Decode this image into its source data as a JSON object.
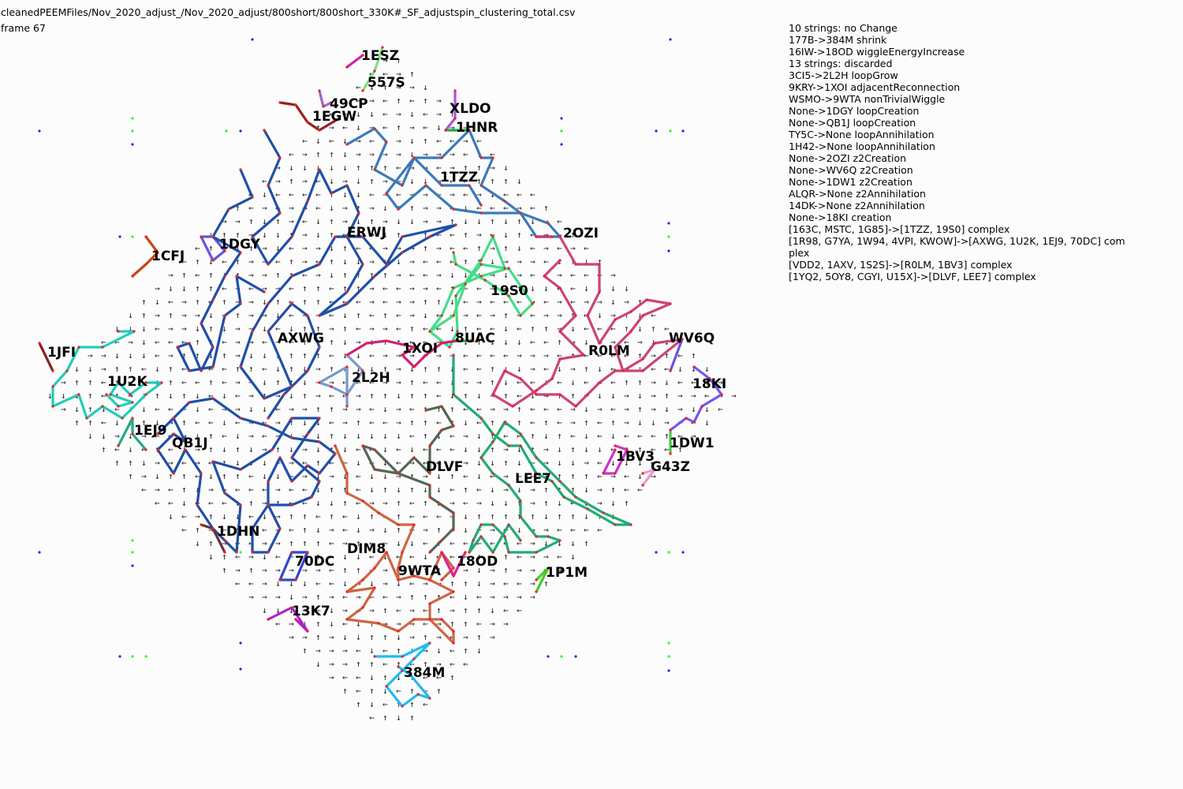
{
  "header": {
    "file_path": "cleanedPEEMFiles/Nov_2020_adjust_/Nov_2020_adjust/800short/800short_330K#_SF_adjustspin_clustering_total.csv",
    "frame_label": "frame 67"
  },
  "log": [
    "10 strings: no Change",
    "177B->384M shrink",
    "16IW->18OD wiggleEnergyIncrease",
    "13 strings: discarded",
    "3CI5->2L2H loopGrow",
    "9KRY->1XOI adjacentReconnection",
    "WSMO->9WTA nonTrivialWiggle",
    "None->1DGY loopCreation",
    "None->QB1J loopCreation",
    "TY5C->None loopAnnihilation",
    "1H42->None loopAnnihilation",
    "None->2OZI z2Creation",
    "None->WV6Q z2Creation",
    "None->1DW1 z2Creation",
    "ALQR->None z2Annihilation",
    "14DK->None z2Annihilation",
    "None->18KI creation",
    "[163C, MSTC, 1G85]->[1TZZ, 19S0] complex",
    "[1R98, G7YA, 1W94, 4VPI, KWOW]->[AXWG, 1U2K, 1EJ9, 70DC] com",
    "plex",
    "[VDD2, 1AXV, 1S2S]->[R0LM, 1BV3] complex",
    "[1YQ2, 5OY8, CGYI, U15X]->[DLVF, LEE7] complex"
  ],
  "strings": [
    {
      "id": "1ESZ",
      "color": "#cc22aa"
    },
    {
      "id": "557S",
      "color": "#7ee07e"
    },
    {
      "id": "49CP",
      "color": "#9966cc"
    },
    {
      "id": "1EGW",
      "color": "#992222"
    },
    {
      "id": "XLDO",
      "color": "#aa55dd"
    },
    {
      "id": "1HNR",
      "color": "#22aa44"
    },
    {
      "id": "1TZZ",
      "color": "#3a7ab8"
    },
    {
      "id": "1CFJ",
      "color": "#cc4411"
    },
    {
      "id": "1DGY",
      "color": "#6655dd"
    },
    {
      "id": "ERWJ",
      "color": "#1f4fa8"
    },
    {
      "id": "2OZI",
      "color": "#cc3377"
    },
    {
      "id": "19S0",
      "color": "#44dd88"
    },
    {
      "id": "1JFI",
      "color": "#882222"
    },
    {
      "id": "AXWG",
      "color": "#1f4fa8"
    },
    {
      "id": "1XOI",
      "color": "#cc2277"
    },
    {
      "id": "8UAC",
      "color": "#449944"
    },
    {
      "id": "R0LM",
      "color": "#cc4477"
    },
    {
      "id": "WV6Q",
      "color": "#6655dd"
    },
    {
      "id": "2L2H",
      "color": "#7799cc"
    },
    {
      "id": "1U2K",
      "color": "#22ccbb"
    },
    {
      "id": "18KI",
      "color": "#7755ee"
    },
    {
      "id": "1EJ9",
      "color": "#22aa88"
    },
    {
      "id": "QB1J",
      "color": "#1f4fa8"
    },
    {
      "id": "1DW1",
      "color": "#44cc44"
    },
    {
      "id": "1BV3",
      "color": "#cc33cc"
    },
    {
      "id": "G43Z",
      "color": "#ee99cc"
    },
    {
      "id": "DLVF",
      "color": "#556655"
    },
    {
      "id": "LEE7",
      "color": "#22aa77"
    },
    {
      "id": "1DHN",
      "color": "#663333"
    },
    {
      "id": "DIM8",
      "color": "#cc6644"
    },
    {
      "id": "70DC",
      "color": "#3344cc"
    },
    {
      "id": "9WTA",
      "color": "#cc6644"
    },
    {
      "id": "18OD",
      "color": "#dd2299"
    },
    {
      "id": "1P1M",
      "color": "#44cc22"
    },
    {
      "id": "13K7",
      "color": "#aa22cc"
    },
    {
      "id": "384M",
      "color": "#22bbee"
    }
  ]
}
